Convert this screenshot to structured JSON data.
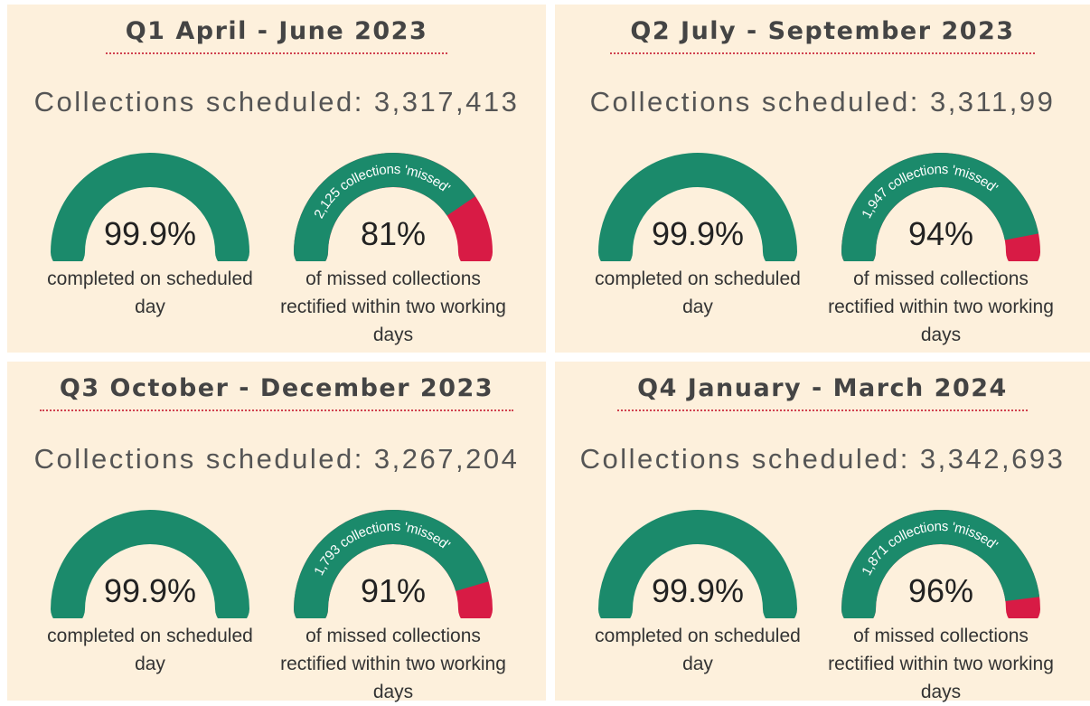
{
  "chart_data": [
    {
      "type": "gauge",
      "title": "Q1 April - June 2023",
      "subtitle": "Collections scheduled: 3,317,413",
      "ylim": [
        0,
        100
      ],
      "color": "#1b8a6b",
      "rest_color": "#d81b45",
      "values": [
        99.9,
        81
      ],
      "value_labels": [
        "99.9%",
        "81%"
      ],
      "captions": [
        "completed on scheduled day",
        "of missed collections rectified within two working days"
      ],
      "arc_label": "2,125 collections 'missed'"
    },
    {
      "type": "gauge",
      "title": "Q2 July - September 2023",
      "subtitle": "Collections scheduled: 3,311,99",
      "ylim": [
        0,
        100
      ],
      "color": "#1b8a6b",
      "rest_color": "#d81b45",
      "values": [
        99.9,
        94
      ],
      "value_labels": [
        "99.9%",
        "94%"
      ],
      "captions": [
        "completed on scheduled day",
        "of missed collections rectified within two working days"
      ],
      "arc_label": "1,947 collections 'missed'"
    },
    {
      "type": "gauge",
      "title": "Q3 October - December 2023",
      "subtitle": "Collections scheduled: 3,267,204",
      "ylim": [
        0,
        100
      ],
      "color": "#1b8a6b",
      "rest_color": "#d81b45",
      "values": [
        99.9,
        91
      ],
      "value_labels": [
        "99.9%",
        "91%"
      ],
      "captions": [
        "completed on scheduled day",
        "of missed collections rectified within two working days"
      ],
      "arc_label": "1,793 collections 'missed'"
    },
    {
      "type": "gauge",
      "title": "Q4 January - March 2024",
      "subtitle": "Collections scheduled: 3,342,693",
      "ylim": [
        0,
        100
      ],
      "color": "#1b8a6b",
      "rest_color": "#d81b45",
      "values": [
        99.9,
        96
      ],
      "value_labels": [
        "99.9%",
        "96%"
      ],
      "captions": [
        "completed on scheduled day",
        "of missed collections rectified within two working days"
      ],
      "arc_label": "1,871 collections 'missed'"
    }
  ]
}
